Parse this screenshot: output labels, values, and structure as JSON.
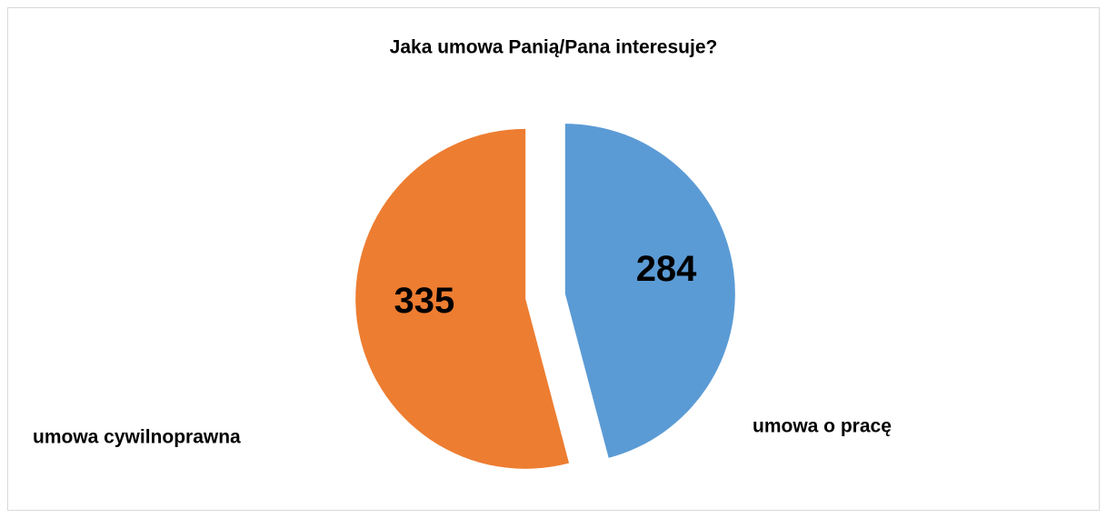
{
  "chart_data": {
    "type": "pie",
    "title": "Jaka umowa Panią/Pana interesuje?",
    "categories": [
      "umowa o pracę",
      "umowa cywilnoprawna"
    ],
    "values": [
      284,
      335
    ],
    "colors": [
      "#5b9bd5",
      "#ed7d31"
    ],
    "exploded": true
  }
}
